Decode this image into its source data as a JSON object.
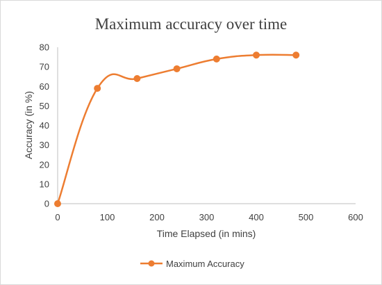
{
  "chart_data": {
    "type": "line",
    "title": "Maximum accuracy over time",
    "xlabel": "Time Elapsed (in mins)",
    "ylabel": "Accuracy (in %)",
    "xlim": [
      0,
      600
    ],
    "ylim": [
      0,
      80
    ],
    "xticks": [
      0,
      100,
      200,
      300,
      400,
      500,
      600
    ],
    "yticks": [
      0,
      10,
      20,
      30,
      40,
      50,
      60,
      70,
      80
    ],
    "grid": false,
    "smooth": true,
    "legend_position": "bottom",
    "series": [
      {
        "name": "Maximum Accuracy",
        "color": "#ed7d31",
        "x": [
          0,
          80,
          160,
          240,
          320,
          400,
          480
        ],
        "y": [
          0,
          59,
          64,
          69,
          74,
          76,
          76
        ]
      }
    ]
  }
}
